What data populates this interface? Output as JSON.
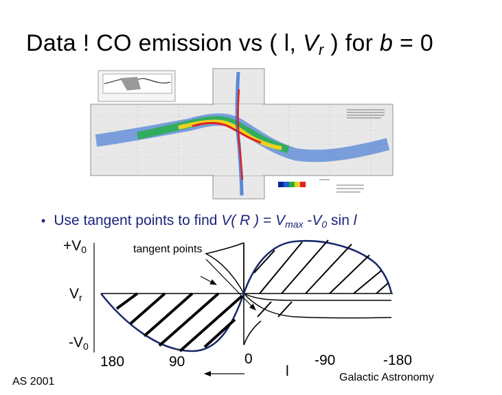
{
  "title": {
    "prefix": "Data !   CO emission vs ( l, ",
    "v": "V",
    "r": "r",
    "mid": " ) for ",
    "b": "b",
    "suffix": " = 0"
  },
  "bullet": {
    "prefix": "Use tangent points to find ",
    "vr": "V( R )",
    "eq": " = ",
    "vmax": "V",
    "max": "max",
    "minus": " -",
    "v0": "V",
    "zero": "0",
    "sin": " sin ",
    "l": "l"
  },
  "labels": {
    "plus_v0": "+V",
    "plus_v0_sub": "0",
    "vr": "V",
    "vr_sub": "r",
    "minus_v0": "-V",
    "minus_v0_sub": "0",
    "tangent_points": "tangent points",
    "x180": "180",
    "x90": "90",
    "x0": "0",
    "l": "l",
    "xm90": "-90",
    "xm180": "-180",
    "footer_left": "AS 2001",
    "footer_right": "Galactic Astronomy"
  },
  "colors": {
    "curve": "#1a2a6c",
    "bullet": "#1a237e"
  }
}
